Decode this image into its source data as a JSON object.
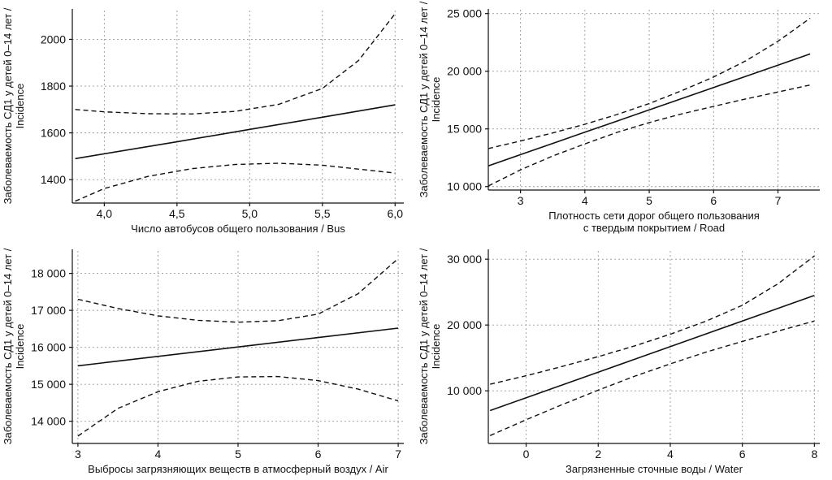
{
  "figure": {
    "background": "#ffffff",
    "ink": "#111111",
    "grid_color": "#999999"
  },
  "chart_data": [
    {
      "type": "line",
      "name": "bus",
      "ylabel": [
        "Заболеваемость СД1 у детей 0–14 лет /",
        "Incidence"
      ],
      "xlabel": [
        "Число автобусов общего пользования / Bus"
      ],
      "xlim": [
        3.78,
        6.06
      ],
      "ylim": [
        1300,
        2130
      ],
      "xticks": [
        4.0,
        4.5,
        5.0,
        5.5,
        6.0
      ],
      "xtick_labels": [
        "4,0",
        "4,5",
        "5,0",
        "5,5",
        "6,0"
      ],
      "yticks": [
        1400,
        1600,
        1800,
        2000
      ],
      "ytick_labels": [
        "1400",
        "1600",
        "1800",
        "2000"
      ],
      "grid": true,
      "series": [
        {
          "name": "fit",
          "style": "solid",
          "x": [
            3.8,
            4.5,
            5.0,
            5.5,
            6.0
          ],
          "y": [
            1490,
            1562,
            1615,
            1667,
            1720
          ]
        },
        {
          "name": "upper-ci",
          "style": "dashed",
          "x": [
            3.8,
            4.0,
            4.3,
            4.6,
            4.9,
            5.2,
            5.5,
            5.75,
            6.0
          ],
          "y": [
            1700,
            1690,
            1682,
            1681,
            1692,
            1722,
            1790,
            1910,
            2110
          ]
        },
        {
          "name": "lower-ci",
          "style": "dashed",
          "x": [
            3.8,
            4.0,
            4.3,
            4.6,
            4.9,
            5.2,
            5.5,
            6.0
          ],
          "y": [
            1308,
            1362,
            1414,
            1447,
            1465,
            1470,
            1462,
            1428
          ]
        }
      ]
    },
    {
      "type": "line",
      "name": "road",
      "ylabel": [
        "Заболеваемость СД1 у детей 0–14 лет /",
        "Incidence"
      ],
      "xlabel": [
        "Плотность сети дорог общего пользования",
        "с твердым покрытием / Road"
      ],
      "xlim": [
        2.5,
        7.65
      ],
      "ylim": [
        9700,
        25400
      ],
      "xticks": [
        3,
        4,
        5,
        6,
        7
      ],
      "xtick_labels": [
        "3",
        "4",
        "5",
        "6",
        "7"
      ],
      "yticks": [
        10000,
        15000,
        20000,
        25000
      ],
      "ytick_labels": [
        "10 000",
        "15 000",
        "20 000",
        "25 000"
      ],
      "grid": true,
      "series": [
        {
          "name": "fit",
          "style": "solid",
          "x": [
            2.5,
            3.0,
            3.5,
            4.0,
            4.5,
            5.0,
            5.5,
            6.0,
            6.5,
            7.0,
            7.5
          ],
          "y": [
            11800,
            12770,
            13740,
            14710,
            15680,
            16650,
            17620,
            18590,
            19560,
            20530,
            21500
          ]
        },
        {
          "name": "upper-ci",
          "style": "dashed",
          "x": [
            2.5,
            3.0,
            3.5,
            4.0,
            4.5,
            5.0,
            5.5,
            6.0,
            6.5,
            7.0,
            7.5
          ],
          "y": [
            13300,
            13950,
            14650,
            15400,
            16250,
            17200,
            18300,
            19500,
            20900,
            22600,
            24600
          ]
        },
        {
          "name": "lower-ci",
          "style": "dashed",
          "x": [
            2.5,
            3.0,
            3.5,
            4.0,
            4.5,
            5.0,
            5.5,
            6.0,
            6.5,
            7.0,
            7.5
          ],
          "y": [
            10050,
            11450,
            12650,
            13700,
            14700,
            15550,
            16300,
            16950,
            17600,
            18200,
            18800
          ]
        }
      ]
    },
    {
      "type": "line",
      "name": "air",
      "ylabel": [
        "Заболеваемость СД1 у детей 0–14 лет /",
        "Incidence"
      ],
      "xlabel": [
        "Выбросы загрязняющих веществ в атмосферный воздух / Air"
      ],
      "xlim": [
        2.93,
        7.07
      ],
      "ylim": [
        13400,
        18650
      ],
      "xticks": [
        3,
        4,
        5,
        6,
        7
      ],
      "xtick_labels": [
        "3",
        "4",
        "5",
        "6",
        "7"
      ],
      "yticks": [
        14000,
        15000,
        16000,
        17000,
        18000
      ],
      "ytick_labels": [
        "14 000",
        "15 000",
        "16 000",
        "17 000",
        "18 000"
      ],
      "grid": true,
      "series": [
        {
          "name": "fit",
          "style": "solid",
          "x": [
            3.0,
            4.0,
            5.0,
            6.0,
            7.0
          ],
          "y": [
            15500,
            15755,
            16010,
            16265,
            16520
          ]
        },
        {
          "name": "upper-ci",
          "style": "dashed",
          "x": [
            3.0,
            3.5,
            4.0,
            4.5,
            5.0,
            5.5,
            6.0,
            6.5,
            7.0
          ],
          "y": [
            17300,
            17050,
            16850,
            16730,
            16680,
            16720,
            16900,
            17450,
            18400
          ]
        },
        {
          "name": "lower-ci",
          "style": "dashed",
          "x": [
            3.0,
            3.5,
            4.0,
            4.5,
            5.0,
            5.5,
            6.0,
            6.5,
            7.0
          ],
          "y": [
            13600,
            14350,
            14800,
            15080,
            15200,
            15210,
            15100,
            14870,
            14550
          ]
        }
      ]
    },
    {
      "type": "line",
      "name": "water",
      "ylabel": [
        "Заболеваемость СД1 у детей 0–14 лет /",
        "Incidence"
      ],
      "xlabel": [
        "Загрязненные сточные воды / Water"
      ],
      "xlim": [
        -1.05,
        8.15
      ],
      "ylim": [
        2000,
        31500
      ],
      "xticks": [
        0,
        2,
        4,
        6,
        8
      ],
      "xtick_labels": [
        "0",
        "2",
        "4",
        "6",
        "8"
      ],
      "yticks": [
        10000,
        20000,
        30000
      ],
      "ytick_labels": [
        "10 000",
        "20 000",
        "30 000"
      ],
      "grid": true,
      "series": [
        {
          "name": "fit",
          "style": "solid",
          "x": [
            -1,
            0,
            1,
            2,
            3,
            4,
            5,
            6,
            7,
            8
          ],
          "y": [
            7000,
            8944,
            10889,
            12833,
            14778,
            16722,
            18667,
            20611,
            22556,
            24500
          ]
        },
        {
          "name": "upper-ci",
          "style": "dashed",
          "x": [
            -1,
            0,
            1,
            2,
            3,
            4,
            5,
            6,
            7,
            8
          ],
          "y": [
            11000,
            12300,
            13700,
            15200,
            16800,
            18600,
            20600,
            23000,
            26300,
            30500
          ]
        },
        {
          "name": "lower-ci",
          "style": "dashed",
          "x": [
            -1,
            0,
            1,
            2,
            3,
            4,
            5,
            6,
            7,
            8
          ],
          "y": [
            3200,
            5600,
            7900,
            10100,
            12200,
            14100,
            15900,
            17500,
            19100,
            20600
          ]
        }
      ]
    }
  ]
}
